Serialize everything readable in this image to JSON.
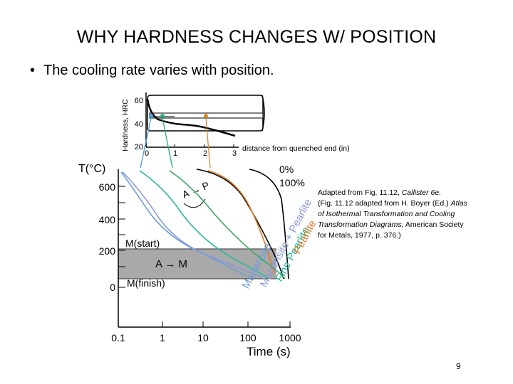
{
  "slide": {
    "title": "WHY HARDNESS CHANGES W/ POSITION",
    "bullet": "The cooling rate varies with position.",
    "caption_prefix": "Adapted from Fig. 11.12, ",
    "caption_book": "Callister 6e.",
    "caption_line2": "(Fig. 11.12 adapted from H. Boyer (Ed.) ",
    "caption_atlas": "Atlas of Isothermal Transformation and Cooling Transformation Diagrams,",
    "caption_tail": " American Society for Metals, 1977, p. 376.)",
    "page_number": "9"
  },
  "hardness_plot": {
    "ylabel": "Hardness, HRC",
    "yticks": [
      "60",
      "40",
      "20"
    ],
    "xticks": [
      "0",
      "1",
      "2",
      "3"
    ],
    "xlabel": "distance from quenched end (in)",
    "marker_colors": [
      "#4a9ee0",
      "#2aa88a",
      "#d98a2a"
    ]
  },
  "cct_diagram": {
    "ylabel": "T(°C)",
    "yticks": [
      "600",
      "400",
      "200",
      "0"
    ],
    "xticks": [
      "0.1",
      "1",
      "10",
      "100",
      "1000"
    ],
    "xlabel": "Time (s)",
    "label_0pct": "0%",
    "label_100pct": "100%",
    "label_AP": "A → P",
    "label_Mstart": "M(start)",
    "label_Mfinish": "M(finish)",
    "label_AM": "A → M",
    "product_labels": [
      "Martensite",
      "Martensite + Pearlite",
      "Fine Pearlite",
      "Pearlite"
    ],
    "curve_colors": [
      "#6a9edb",
      "#8a9ad8",
      "#28b8a0",
      "#3aa860",
      "#d97a20"
    ],
    "band_color": "#a9a9a9"
  }
}
